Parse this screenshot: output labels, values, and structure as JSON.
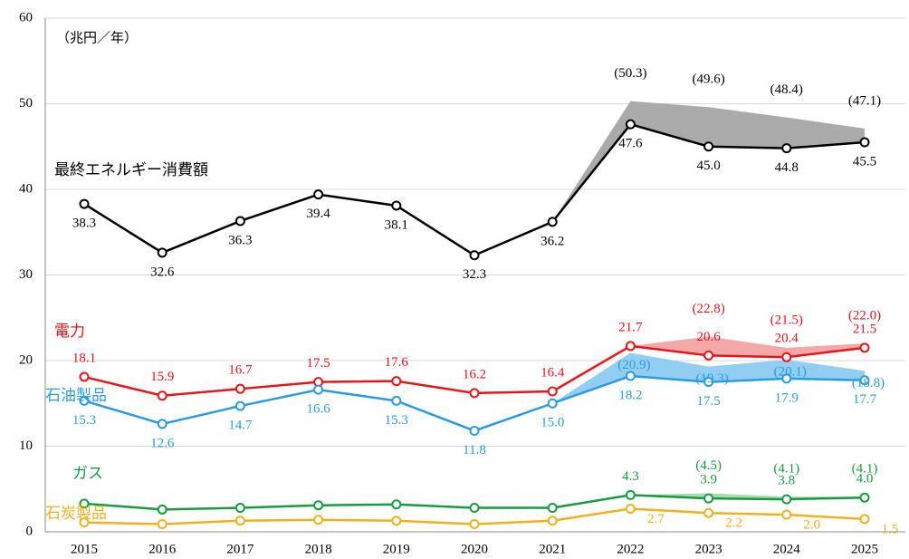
{
  "chart_data": {
    "type": "line",
    "y_label": "（兆円／年）",
    "categories": [
      "2015",
      "2016",
      "2017",
      "2018",
      "2019",
      "2020",
      "2021",
      "2022",
      "2023",
      "2024",
      "2025"
    ],
    "ylim": [
      0,
      60
    ],
    "yticks": [
      0,
      10,
      20,
      30,
      40,
      50,
      60
    ],
    "grid": true,
    "series": [
      {
        "name": "最終エネルギー消費額",
        "color": "#000000",
        "band_color": "#aaaaaa",
        "label_position": "below",
        "upper_label_position": "above",
        "values": [
          38.3,
          32.6,
          36.3,
          39.4,
          38.1,
          32.3,
          36.2,
          47.6,
          45.0,
          44.8,
          45.5
        ],
        "value_labels": [
          "38.3",
          "32.6",
          "36.3",
          "39.4",
          "38.1",
          "32.3",
          "36.2",
          "47.6",
          "45.0",
          "44.8",
          "45.5"
        ],
        "upper_values": [
          null,
          null,
          null,
          null,
          null,
          null,
          null,
          50.3,
          49.6,
          48.4,
          47.1
        ],
        "upper_labels": [
          null,
          null,
          null,
          null,
          null,
          null,
          null,
          "(50.3)",
          "(49.6)",
          "(48.4)",
          "(47.1)"
        ]
      },
      {
        "name": "電力",
        "color": "#e8141c",
        "band_color": "#f4a8a8",
        "label_position": "above",
        "upper_label_position": "above",
        "values": [
          18.1,
          15.9,
          16.7,
          17.5,
          17.6,
          16.2,
          16.4,
          21.7,
          20.6,
          20.4,
          21.5
        ],
        "value_labels": [
          "18.1",
          "15.9",
          "16.7",
          "17.5",
          "17.6",
          "16.2",
          "16.4",
          "21.7",
          "20.6",
          "20.4",
          "21.5"
        ],
        "upper_values": [
          null,
          null,
          null,
          null,
          null,
          null,
          null,
          null,
          22.8,
          21.5,
          22.0
        ],
        "upper_labels": [
          null,
          null,
          null,
          null,
          null,
          null,
          null,
          null,
          "(22.8)",
          "(21.5)",
          "(22.0)"
        ]
      },
      {
        "name": "石油製品",
        "color": "#2a9be0",
        "band_color": "#92cdf2",
        "label_position": "below",
        "upper_label_position": "right",
        "values": [
          15.3,
          12.6,
          14.7,
          16.6,
          15.3,
          11.8,
          15.0,
          18.2,
          17.5,
          17.9,
          17.7
        ],
        "value_labels": [
          "15.3",
          "12.6",
          "14.7",
          "16.6",
          "15.3",
          "11.8",
          "15.0",
          "18.2",
          "17.5",
          "17.9",
          "17.7"
        ],
        "upper_values": [
          null,
          null,
          null,
          null,
          null,
          null,
          null,
          20.9,
          19.3,
          20.1,
          18.8
        ],
        "upper_labels": [
          null,
          null,
          null,
          null,
          null,
          null,
          null,
          "(20.9)",
          "(19.3)",
          "(20.1)",
          "(18.8)"
        ]
      },
      {
        "name": "ガス",
        "color": "#1a9a40",
        "band_color": "#a6dcae",
        "label_position": "above",
        "upper_label_position": "above",
        "values": [
          3.3,
          2.6,
          2.8,
          3.1,
          3.2,
          2.8,
          2.8,
          4.3,
          3.9,
          3.8,
          4.0
        ],
        "value_labels": [
          null,
          null,
          null,
          null,
          null,
          null,
          null,
          "4.3",
          "3.9",
          "3.8",
          "4.0"
        ],
        "upper_values": [
          null,
          null,
          null,
          null,
          null,
          null,
          null,
          null,
          4.5,
          4.1,
          4.1
        ],
        "upper_labels": [
          null,
          null,
          null,
          null,
          null,
          null,
          null,
          null,
          "(4.5)",
          "(4.1)",
          "(4.1)"
        ]
      },
      {
        "name": "石炭製品",
        "color": "#f0b020",
        "band_color": "#f8dc90",
        "label_position": "below-right",
        "upper_label_position": "above",
        "values": [
          1.1,
          0.9,
          1.3,
          1.4,
          1.3,
          0.9,
          1.3,
          2.7,
          2.2,
          2.0,
          1.5
        ],
        "value_labels": [
          null,
          null,
          null,
          null,
          null,
          null,
          null,
          "2.7",
          "2.2",
          "2.0",
          "1.5"
        ],
        "upper_values": [
          null,
          null,
          null,
          null,
          null,
          null,
          null,
          null,
          null,
          null,
          null
        ],
        "upper_labels": [
          null,
          null,
          null,
          null,
          null,
          null,
          null,
          null,
          null,
          null,
          null
        ]
      }
    ]
  }
}
